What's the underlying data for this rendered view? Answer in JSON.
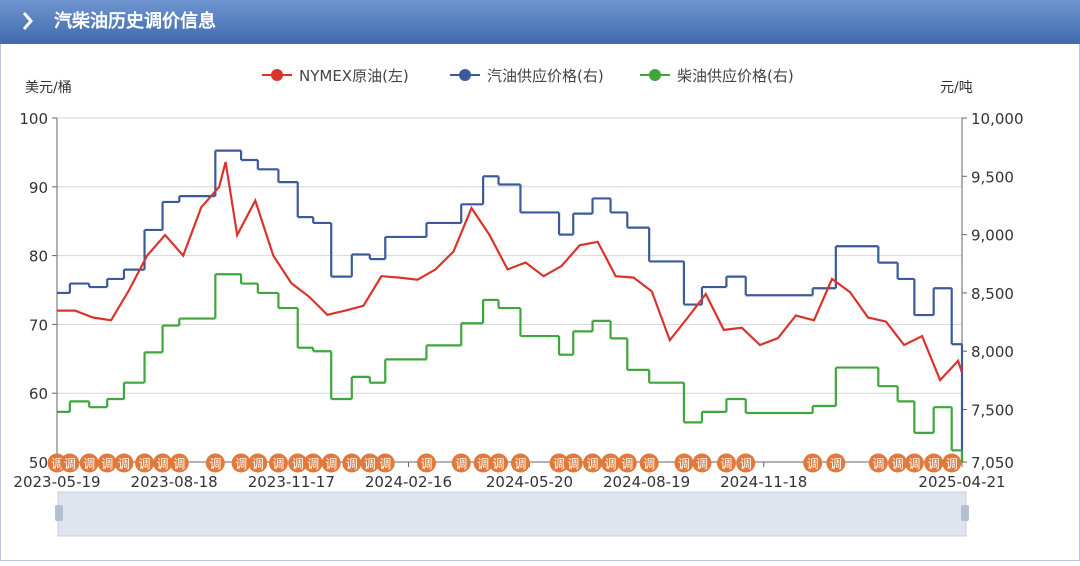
{
  "header": {
    "title": "汽柴油历史调价信息"
  },
  "chart_data": {
    "type": "line",
    "y_axis_name": "美元/桶",
    "y2_axis_name": "元/吨",
    "adjust_label": "调",
    "xlim": [
      "2023-05-19",
      "2025-04-21"
    ],
    "xticks": [
      "2023-05-19",
      "2023-08-18",
      "2023-11-17",
      "2024-02-16",
      "2024-05-20",
      "2024-08-19",
      "2024-11-18",
      "2025-04-21"
    ],
    "ylim": [
      50,
      100
    ],
    "yticks": [
      50,
      60,
      70,
      80,
      90,
      100
    ],
    "y2lim": [
      7050,
      10000
    ],
    "y2ticks": [
      {
        "value": 7050,
        "label": "7,050"
      },
      {
        "value": 7500,
        "label": "7,500"
      },
      {
        "value": 8000,
        "label": "8,000"
      },
      {
        "value": 8500,
        "label": "8,500"
      },
      {
        "value": 9000,
        "label": "9,000"
      },
      {
        "value": 9500,
        "label": "9,500"
      },
      {
        "value": 10000,
        "label": "10,000"
      }
    ],
    "grid": true,
    "x": [
      "2023-05-19",
      "2023-06-02",
      "2023-06-16",
      "2023-06-30",
      "2023-07-14",
      "2023-07-28",
      "2023-08-11",
      "2023-08-25",
      "2023-09-08",
      "2023-09-22",
      "2023-09-27",
      "2023-10-06",
      "2023-10-20",
      "2023-11-03",
      "2023-11-17",
      "2023-12-01",
      "2023-12-15",
      "2023-12-29",
      "2024-01-12",
      "2024-01-26",
      "2024-02-09",
      "2024-02-23",
      "2024-03-08",
      "2024-03-22",
      "2024-04-05",
      "2024-04-19",
      "2024-05-03",
      "2024-05-17",
      "2024-05-31",
      "2024-06-14",
      "2024-06-28",
      "2024-07-12",
      "2024-07-26",
      "2024-08-09",
      "2024-08-23",
      "2024-09-06",
      "2024-09-20",
      "2024-10-04",
      "2024-10-18",
      "2024-11-01",
      "2024-11-15",
      "2024-11-29",
      "2024-12-13",
      "2024-12-27",
      "2025-01-10",
      "2025-01-24",
      "2025-02-07",
      "2025-02-21",
      "2025-03-07",
      "2025-03-21",
      "2025-04-04",
      "2025-04-18",
      "2025-04-21"
    ],
    "series": [
      {
        "name": "NYMEX原油(左)",
        "color": "#d9342b",
        "values": [
          72,
          72,
          71,
          70.6,
          75,
          80,
          83,
          80,
          87,
          90,
          93.6,
          83,
          88,
          80,
          76,
          74,
          71.4,
          72,
          72.7,
          77,
          76.8,
          76.5,
          78,
          80.6,
          86.9,
          83,
          78,
          79,
          77,
          78.5,
          81.5,
          82,
          77,
          76.8,
          74.8,
          67.7,
          71,
          74.4,
          69.2,
          69.5,
          67,
          68,
          71.3,
          70.6,
          76.6,
          74.7,
          71,
          70.4,
          67,
          68.3,
          61.9,
          64.7,
          63
        ]
      },
      {
        "name": "汽油供应价格(右)",
        "color": "#3c5a9a",
        "axis": "y2",
        "x": [
          "2023-05-19",
          "2023-05-29",
          "2023-06-13",
          "2023-06-27",
          "2023-07-10",
          "2023-07-26",
          "2023-08-09",
          "2023-08-22",
          "2023-09-19",
          "2023-10-09",
          "2023-10-22",
          "2023-11-07",
          "2023-11-22",
          "2023-12-04",
          "2023-12-18",
          "2024-01-03",
          "2024-01-17",
          "2024-01-29",
          "2024-03-01",
          "2024-03-28",
          "2024-04-14",
          "2024-04-26",
          "2024-05-13",
          "2024-06-12",
          "2024-06-23",
          "2024-07-08",
          "2024-07-22",
          "2024-08-04",
          "2024-08-21",
          "2024-09-17",
          "2024-10-01",
          "2024-10-20",
          "2024-11-04",
          "2024-12-26",
          "2025-01-13",
          "2025-02-15",
          "2025-03-02",
          "2025-03-15",
          "2025-03-30",
          "2025-04-13"
        ],
        "values": [
          8500,
          8580,
          8550,
          8620,
          8700,
          9040,
          9280,
          9330,
          9720,
          9640,
          9560,
          9450,
          9150,
          9100,
          8640,
          8830,
          8790,
          8980,
          9100,
          9260,
          9500,
          9430,
          9190,
          9000,
          9180,
          9310,
          9190,
          9060,
          8770,
          8400,
          8550,
          8640,
          8480,
          8540,
          8900,
          8760,
          8620,
          8310,
          8540,
          8060
        ]
      },
      {
        "name": "柴油供应价格(右)",
        "color": "#3ea63a",
        "axis": "y2",
        "x": [
          "2023-05-19",
          "2023-05-29",
          "2023-06-13",
          "2023-06-27",
          "2023-07-10",
          "2023-07-26",
          "2023-08-09",
          "2023-08-22",
          "2023-09-19",
          "2023-10-09",
          "2023-10-22",
          "2023-11-07",
          "2023-11-22",
          "2023-12-04",
          "2023-12-18",
          "2024-01-03",
          "2024-01-17",
          "2024-01-29",
          "2024-03-01",
          "2024-03-28",
          "2024-04-14",
          "2024-04-26",
          "2024-05-13",
          "2024-06-12",
          "2024-06-23",
          "2024-07-08",
          "2024-07-22",
          "2024-08-04",
          "2024-08-21",
          "2024-09-17",
          "2024-10-01",
          "2024-10-20",
          "2024-11-04",
          "2024-12-26",
          "2025-01-13",
          "2025-02-15",
          "2025-03-02",
          "2025-03-15",
          "2025-03-30",
          "2025-04-13"
        ],
        "values": [
          7480,
          7570,
          7520,
          7590,
          7730,
          7990,
          8220,
          8280,
          8660,
          8580,
          8500,
          8370,
          8030,
          8000,
          7590,
          7780,
          7730,
          7930,
          8050,
          8240,
          8440,
          8370,
          8130,
          7970,
          8170,
          8260,
          8110,
          7840,
          7730,
          7390,
          7480,
          7590,
          7470,
          7530,
          7860,
          7700,
          7570,
          7300,
          7520,
          7150
        ]
      }
    ]
  }
}
